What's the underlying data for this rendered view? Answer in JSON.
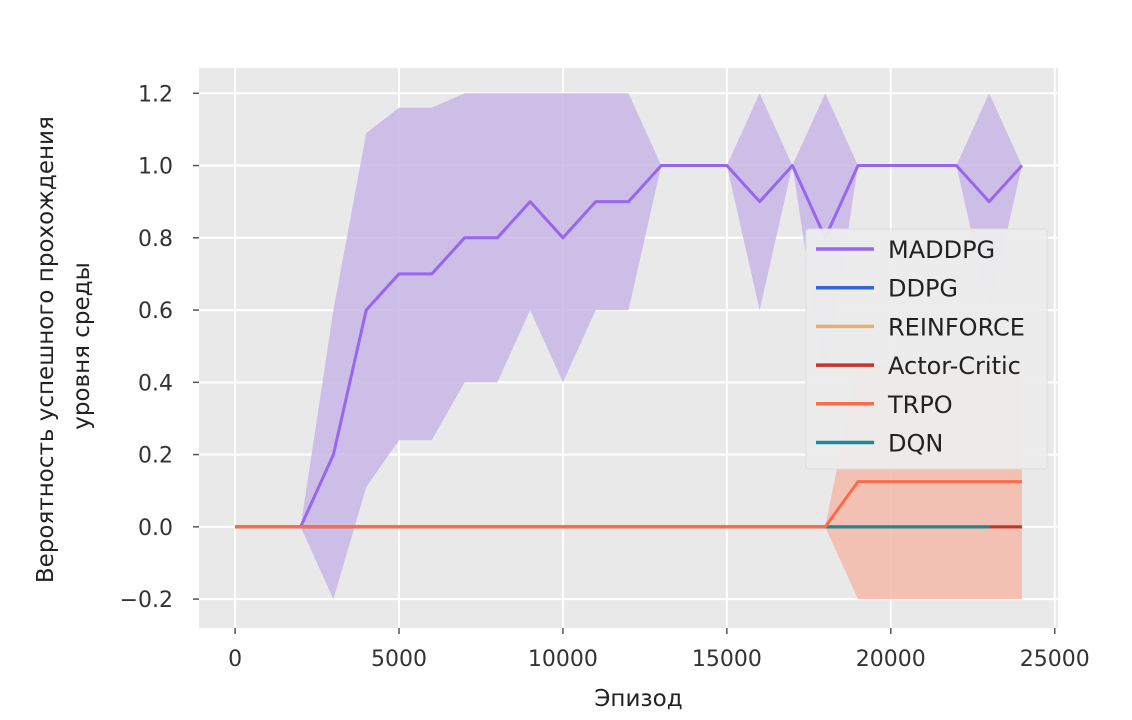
{
  "chart_data": {
    "type": "line",
    "title": "",
    "xlabel": "Эпизод",
    "ylabel": [
      "Вероятность успешного прохождения",
      "уровня среды"
    ],
    "xlim": [
      -1100,
      25100
    ],
    "ylim": [
      -0.28,
      1.27
    ],
    "xticks": [
      0,
      5000,
      10000,
      15000,
      20000,
      25000
    ],
    "xtick_labels": [
      "0",
      "5000",
      "10000",
      "15000",
      "20000",
      "25000"
    ],
    "yticks": [
      -0.2,
      0.0,
      0.2,
      0.4,
      0.6,
      0.8,
      1.0,
      1.2
    ],
    "ytick_labels": [
      "−0.2",
      "0.0",
      "0.2",
      "0.4",
      "0.6",
      "0.8",
      "1.0",
      "1.2"
    ],
    "grid": true,
    "legend_position": "center-right",
    "background": "#e9e9e9",
    "series": [
      {
        "name": "MADDPG",
        "color": "#9966ee",
        "band_color": "#c8b6e6",
        "x": [
          0,
          1000,
          2000,
          3000,
          4000,
          5000,
          6000,
          7000,
          8000,
          9000,
          10000,
          11000,
          12000,
          13000,
          14000,
          15000,
          16000,
          17000,
          18000,
          19000,
          20000,
          21000,
          22000,
          23000,
          24000
        ],
        "values": [
          0,
          0,
          0,
          0.2,
          0.6,
          0.7,
          0.7,
          0.8,
          0.8,
          0.9,
          0.8,
          0.9,
          0.9,
          1.0,
          1.0,
          1.0,
          0.9,
          1.0,
          0.8,
          1.0,
          1.0,
          1.0,
          1.0,
          0.9,
          1.0
        ],
        "upper": [
          0,
          0,
          0,
          0.6,
          1.09,
          1.16,
          1.16,
          1.2,
          1.2,
          1.2,
          1.2,
          1.2,
          1.2,
          1.0,
          1.0,
          1.0,
          1.2,
          1.0,
          1.2,
          1.0,
          1.0,
          1.0,
          1.0,
          1.2,
          1.0
        ],
        "lower": [
          0,
          0,
          0,
          -0.2,
          0.11,
          0.24,
          0.24,
          0.4,
          0.4,
          0.6,
          0.4,
          0.6,
          0.6,
          1.0,
          1.0,
          1.0,
          0.6,
          1.0,
          0.4,
          1.0,
          1.0,
          1.0,
          1.0,
          0.6,
          1.0
        ]
      },
      {
        "name": "DDPG",
        "color": "#3366dd",
        "x": [
          0,
          24000
        ],
        "values": [
          0,
          0
        ]
      },
      {
        "name": "REINFORCE",
        "color": "#e8b070",
        "x": [
          0,
          24000
        ],
        "values": [
          0,
          0
        ]
      },
      {
        "name": "Actor-Critic",
        "color": "#c83228",
        "x": [
          0,
          24000
        ],
        "values": [
          0,
          0
        ]
      },
      {
        "name": "TRPO",
        "color": "#ff6a48",
        "band_color": "#f4b8aa",
        "x": [
          0,
          18000,
          19000,
          20000,
          21000,
          22000,
          23000,
          24000
        ],
        "values": [
          0,
          0,
          0.125,
          0.125,
          0.125,
          0.125,
          0.125,
          0.125
        ],
        "upper": [
          0,
          0,
          0.45,
          0.45,
          0.45,
          0.45,
          0.45,
          0.45
        ],
        "lower": [
          0,
          0,
          -0.2,
          -0.2,
          -0.2,
          -0.2,
          -0.2,
          -0.2
        ]
      },
      {
        "name": "DQN",
        "color": "#1a8a9a",
        "x": [
          0,
          23000
        ],
        "values": [
          0,
          0
        ]
      }
    ]
  }
}
